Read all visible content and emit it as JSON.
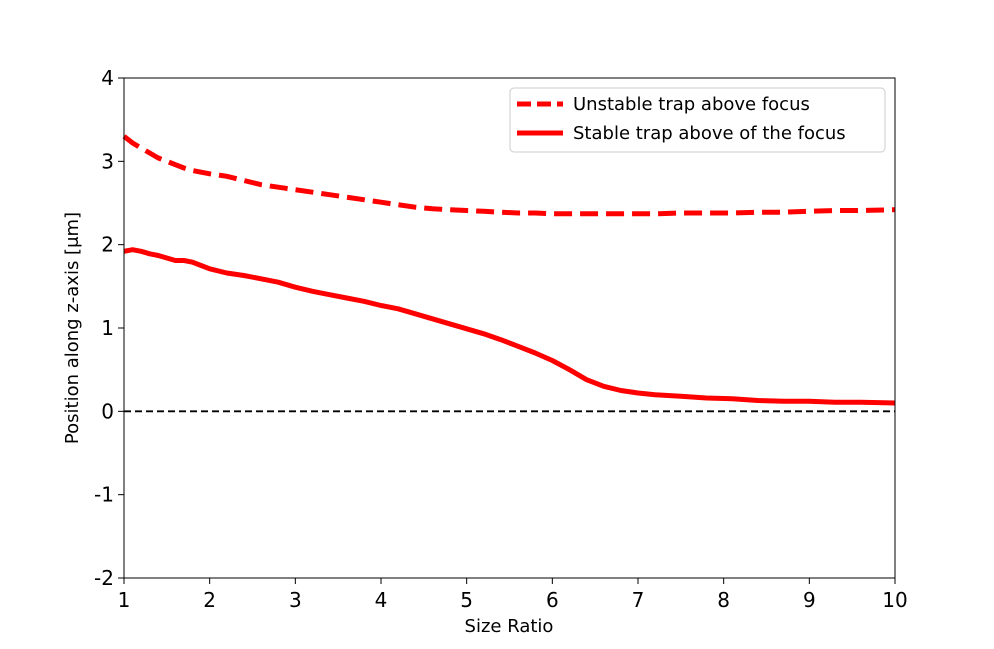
{
  "chart_data": {
    "type": "line",
    "xlabel": "Size Ratio",
    "ylabel": "Position along z-axis [μm]",
    "xlim": [
      1,
      10
    ],
    "ylim": [
      -2,
      4
    ],
    "x_ticks": [
      "1",
      "2",
      "3",
      "4",
      "5",
      "6",
      "7",
      "8",
      "9",
      "10"
    ],
    "y_ticks": [
      "-2",
      "-1",
      "0",
      "1",
      "2",
      "3",
      "4"
    ],
    "grid": false,
    "legend_position": "top-right",
    "reference_line": {
      "y": 0,
      "style": "dashed",
      "color": "#000000"
    },
    "series": [
      {
        "name": "Unstable trap above focus",
        "style": "dashed",
        "color": "#ff0000",
        "x": [
          1.0,
          1.1,
          1.2,
          1.3,
          1.4,
          1.5,
          1.6,
          1.7,
          1.8,
          1.9,
          2.0,
          2.2,
          2.4,
          2.6,
          2.8,
          3.0,
          3.2,
          3.4,
          3.6,
          3.8,
          4.0,
          4.2,
          4.4,
          4.6,
          4.8,
          5.0,
          5.2,
          5.4,
          5.6,
          5.8,
          6.0,
          6.3,
          6.6,
          6.9,
          7.2,
          7.5,
          7.8,
          8.1,
          8.4,
          8.7,
          9.0,
          9.3,
          9.6,
          10.0
        ],
        "y": [
          3.3,
          3.22,
          3.16,
          3.1,
          3.04,
          3.0,
          2.96,
          2.92,
          2.89,
          2.87,
          2.85,
          2.82,
          2.77,
          2.72,
          2.69,
          2.66,
          2.63,
          2.6,
          2.57,
          2.54,
          2.51,
          2.48,
          2.45,
          2.43,
          2.42,
          2.41,
          2.4,
          2.39,
          2.38,
          2.38,
          2.37,
          2.37,
          2.37,
          2.37,
          2.37,
          2.38,
          2.38,
          2.38,
          2.39,
          2.39,
          2.4,
          2.41,
          2.41,
          2.42
        ]
      },
      {
        "name": "Stable trap above of the focus",
        "style": "solid",
        "color": "#ff0000",
        "x": [
          1.0,
          1.1,
          1.2,
          1.3,
          1.4,
          1.5,
          1.6,
          1.7,
          1.8,
          1.9,
          2.0,
          2.2,
          2.4,
          2.6,
          2.8,
          3.0,
          3.2,
          3.4,
          3.6,
          3.8,
          4.0,
          4.2,
          4.4,
          4.6,
          4.8,
          5.0,
          5.2,
          5.4,
          5.6,
          5.8,
          6.0,
          6.2,
          6.4,
          6.6,
          6.8,
          7.0,
          7.2,
          7.5,
          7.8,
          8.1,
          8.4,
          8.7,
          9.0,
          9.3,
          9.6,
          10.0
        ],
        "y": [
          1.92,
          1.94,
          1.92,
          1.89,
          1.87,
          1.84,
          1.81,
          1.81,
          1.79,
          1.75,
          1.71,
          1.66,
          1.63,
          1.59,
          1.55,
          1.49,
          1.44,
          1.4,
          1.36,
          1.32,
          1.27,
          1.23,
          1.17,
          1.11,
          1.05,
          0.99,
          0.93,
          0.86,
          0.78,
          0.7,
          0.61,
          0.5,
          0.38,
          0.3,
          0.25,
          0.22,
          0.2,
          0.18,
          0.16,
          0.15,
          0.13,
          0.12,
          0.12,
          0.11,
          0.11,
          0.1
        ]
      }
    ]
  }
}
